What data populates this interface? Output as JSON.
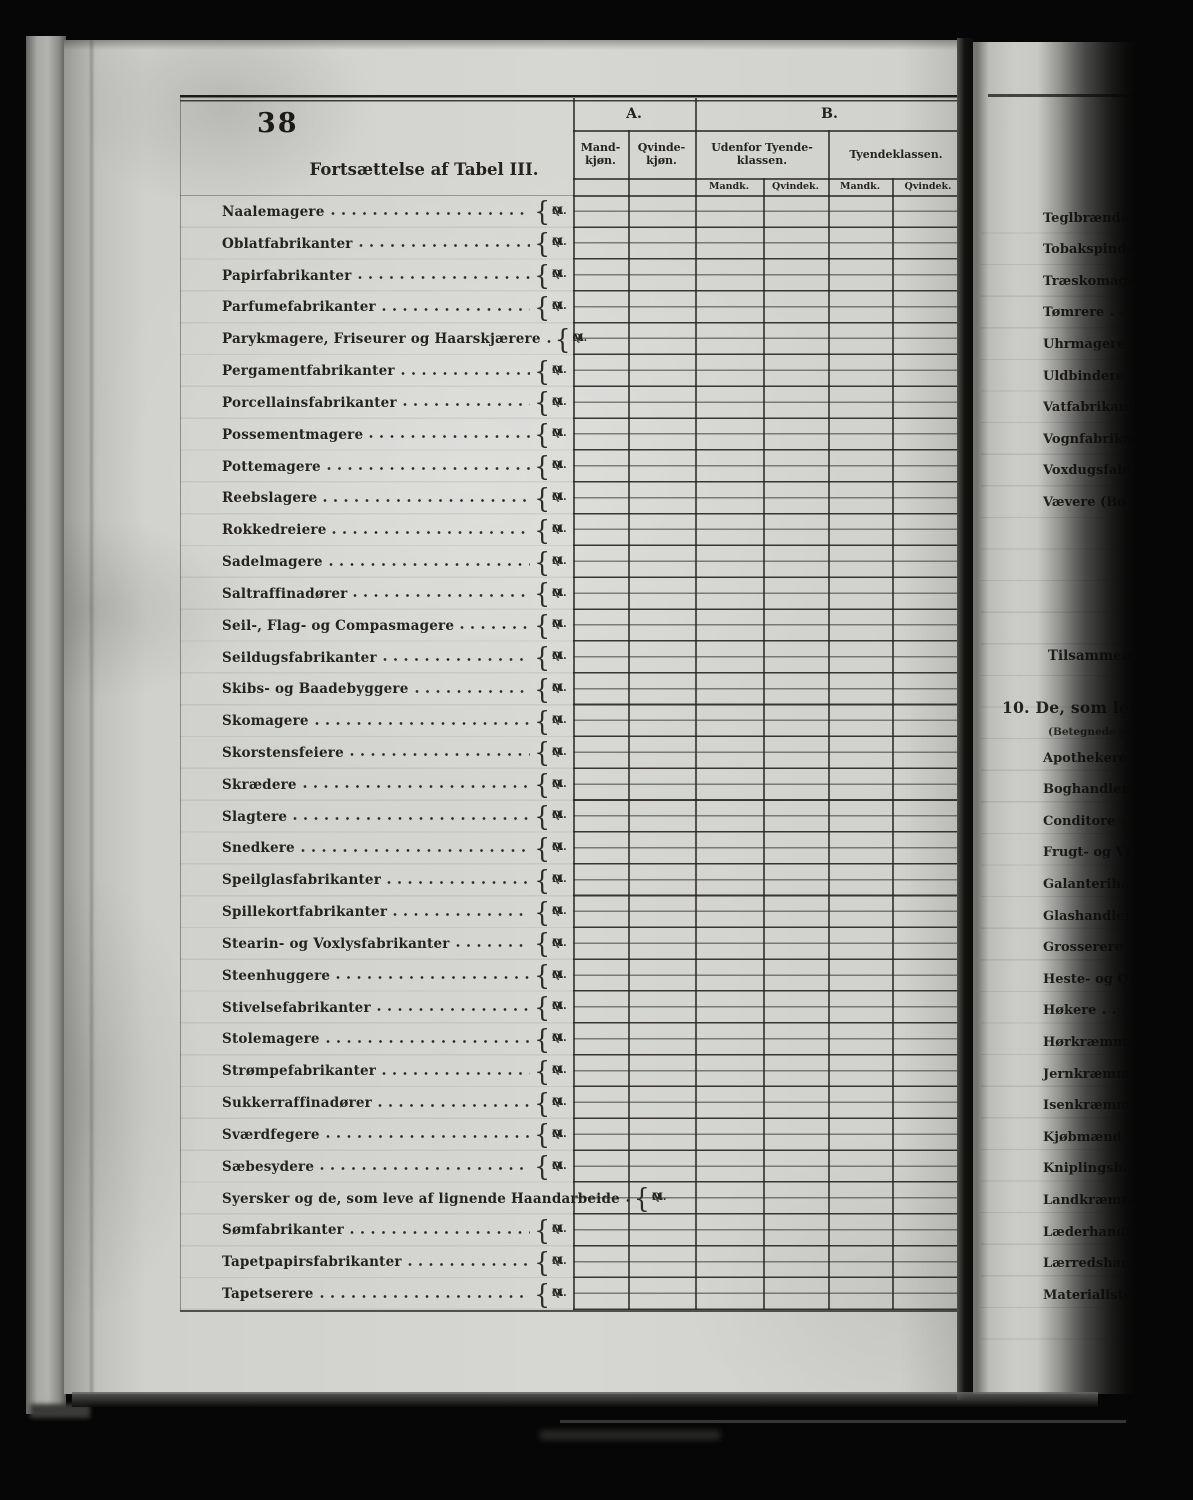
{
  "page": {
    "number": "38",
    "subtitle": "Fortsættelse af Tabel III."
  },
  "table": {
    "section_a": "A.",
    "section_b": "B.",
    "col_mand": "Mand-kjøn.",
    "col_qvinde": "Qvinde-kjøn.",
    "col_udenfor": "Udenfor Tyende-klassen.",
    "col_tyende": "Tyendeklassen.",
    "sub_mand": "Mandk.",
    "sub_qvinde": "Qvindek.",
    "brace": "{",
    "marker_top": "Q.",
    "marker_bottom": "M.",
    "rows": [
      "Naalemagere",
      "Oblatfabrikanter",
      "Papirfabrikanter",
      "Parfumefabrikanter",
      "Parykmagere, Friseurer og Haarskjærere",
      "Pergamentfabrikanter",
      "Porcellainsfabrikanter",
      "Possementmagere",
      "Pottemagere",
      "Reebslagere",
      "Rokkedreiere",
      "Sadelmagere",
      "Saltraffinadører",
      "Seil-, Flag- og Compasmagere",
      "Seildugsfabrikanter",
      "Skibs- og Baadebyggere",
      "Skomagere",
      "Skorstensfeiere",
      "Skrædere",
      "Slagtere",
      "Snedkere",
      "Speilglasfabrikanter",
      "Spillekortfabrikanter",
      "Stearin- og Voxlysfabrikanter",
      "Steenhuggere",
      "Stivelsefabrikanter",
      "Stolemagere",
      "Strømpefabrikanter",
      "Sukkerraffinadører",
      "Sværdfegere",
      "Sæbesydere",
      "Syersker og de, som leve af lignende Haandarbeide",
      "Sømfabrikanter",
      "Tapetpapirsfabrikanter",
      "Tapetserere"
    ]
  },
  "right_page": {
    "top_rows": [
      "Teglbrændere",
      "Tobakspindere",
      "Træskomagere",
      "Tømrere",
      "Uhrmagere",
      "Uldbindere",
      "Vatfabrikanter",
      "Vognfabrikant",
      "Voxdugsfabrik",
      "Vævere (Bo"
    ],
    "tilsammen": "Tilsammen:",
    "section_heading": "10.  De, som leve",
    "section_subnote": "(Betegnede paa",
    "bottom_rows": [
      "Apothekere",
      "Boghandlere",
      "Conditore",
      "Frugt- og Vi",
      "Galanterihand",
      "Glashandlere",
      "Grosserere",
      "Heste- og Qv",
      "Høkere",
      "Hørkræmmere",
      "Jernkræmmere",
      "Isenkræmmere",
      "Kjøbmænd",
      "Kniplingshandl",
      "Landkræmmere",
      "Læderhandlere",
      "Lærredshandlere",
      "Materialister"
    ]
  }
}
